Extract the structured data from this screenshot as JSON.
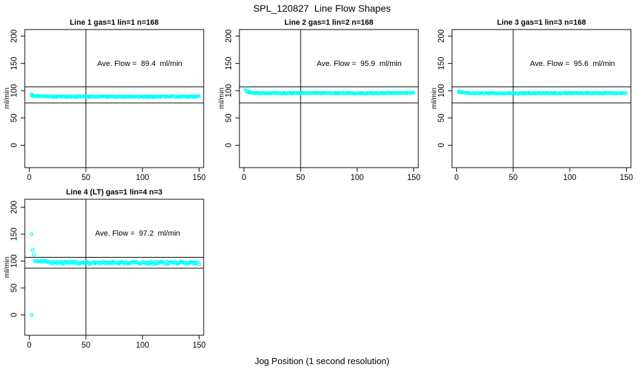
{
  "main_title": "SPL_120827  Line Flow Shapes",
  "x_axis_label": "Jog Position (1 second resolution)",
  "colors": {
    "marker": "#00ffff",
    "axis": "#000000",
    "text": "#000000",
    "background": "#ffffff"
  },
  "chart_data": [
    {
      "type": "scatter",
      "title": "Line 1 gas=1 lin=1 n=168",
      "annotation": "Ave. Flow =  89.4  ml/min",
      "ave_flow_ml_min": 89.4,
      "n": 168,
      "gas": 1,
      "lin": 1,
      "ylabel": "ml/min",
      "xticks": [
        0,
        50,
        100,
        150
      ],
      "yticks": [
        0,
        50,
        100,
        150,
        200
      ],
      "xlim": [
        -4,
        154
      ],
      "ylim": [
        -41,
        212
      ],
      "vline_x": 50,
      "hlines": [
        107,
        77.5
      ],
      "marker": "open-circle",
      "points_spec": {
        "transients": [
          [
            2,
            93
          ]
        ],
        "band": {
          "x_start": 2,
          "x_end": 150,
          "start": 91.5,
          "settle": 89.2,
          "tau": 5,
          "jitter": 0.9
        }
      }
    },
    {
      "type": "scatter",
      "title": "Line 2 gas=1 lin=2 n=168",
      "annotation": "Ave. Flow =  95.9  ml/min",
      "ave_flow_ml_min": 95.9,
      "n": 168,
      "gas": 1,
      "lin": 2,
      "ylabel": "ml/min",
      "xticks": [
        0,
        50,
        100,
        150
      ],
      "yticks": [
        0,
        50,
        100,
        150,
        200
      ],
      "xlim": [
        -4,
        154
      ],
      "ylim": [
        -41,
        212
      ],
      "vline_x": 50,
      "hlines": [
        107,
        77.5
      ],
      "marker": "open-circle",
      "points_spec": {
        "transients": [
          [
            1,
            104
          ]
        ],
        "band": {
          "x_start": 2,
          "x_end": 150,
          "start": 98,
          "settle": 95.7,
          "tau": 4,
          "jitter": 0.9
        }
      }
    },
    {
      "type": "scatter",
      "title": "Line 3 gas=1 lin=3 n=168",
      "annotation": "Ave. Flow =  95.6  ml/min",
      "ave_flow_ml_min": 95.6,
      "n": 168,
      "gas": 1,
      "lin": 3,
      "ylabel": "ml/min",
      "xticks": [
        0,
        50,
        100,
        150
      ],
      "yticks": [
        0,
        50,
        100,
        150,
        200
      ],
      "xlim": [
        -4,
        154
      ],
      "ylim": [
        -41,
        212
      ],
      "vline_x": 50,
      "hlines": [
        107,
        77.5
      ],
      "marker": "open-circle",
      "points_spec": {
        "transients": [
          [
            2,
            99
          ]
        ],
        "band": {
          "x_start": 2,
          "x_end": 150,
          "start": 97.5,
          "settle": 95.5,
          "tau": 4,
          "jitter": 0.9
        }
      }
    },
    {
      "type": "scatter",
      "title": "Line 4 (LT) gas=1 lin=4 n=3",
      "annotation": "Ave. Flow =  97.2  ml/min",
      "ave_flow_ml_min": 97.2,
      "n": 3,
      "gas": 1,
      "lin": 4,
      "ylabel": "ml/min",
      "xticks": [
        0,
        50,
        100,
        150
      ],
      "yticks": [
        0,
        50,
        100,
        150,
        200
      ],
      "xlim": [
        -4,
        154
      ],
      "ylim": [
        -38,
        215
      ],
      "vline_x": 50,
      "hlines": [
        107,
        87
      ],
      "marker": "open-circle",
      "points_spec": {
        "transients": [
          [
            2,
            150
          ],
          [
            2,
            0
          ],
          [
            3,
            121
          ],
          [
            4,
            112
          ]
        ],
        "band": {
          "x_start": 5,
          "x_end": 150,
          "start": 102,
          "settle": 96.8,
          "tau": 8,
          "jitter": 2.6
        }
      }
    }
  ]
}
